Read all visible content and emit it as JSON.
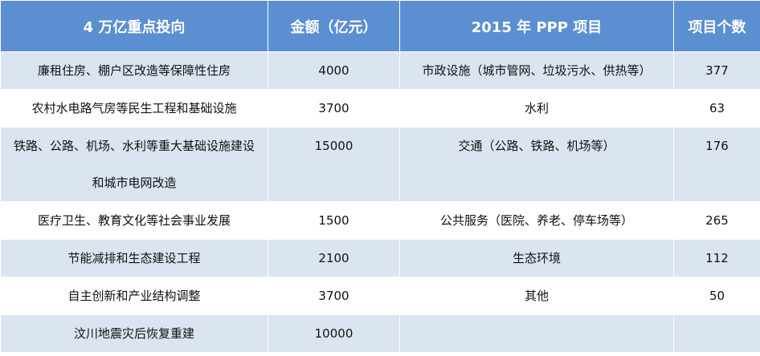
{
  "table": {
    "header": [
      "4 万亿重点投向",
      "金额（亿元）",
      "2015 年 PPP 项目",
      "项目个数"
    ],
    "rows": [
      [
        "廉租住房、棚户区改造等保障性住房",
        4000,
        "市政设施（城市管网、垃圾污水、供热等）",
        377
      ],
      [
        "农村水电路气房等民生工程和基础设施",
        3700,
        "水利",
        63
      ],
      [
        "铁路、公路、机场、水利等重大基础设施建设和城市电网改造",
        15000,
        "交通（公路、铁路、机场等）",
        176
      ],
      [
        "医疗卫生、教育文化等社会事业发展",
        1500,
        "公共服务（医院、养老、停车场等）",
        265
      ],
      [
        "节能减排和生态建设工程",
        2100,
        "生态环境",
        112
      ],
      [
        "自主创新和产业结构调整",
        3700,
        "其他",
        50
      ],
      [
        "汶川地震灾后恢复重建",
        10000
      ]
    ]
  }
}
